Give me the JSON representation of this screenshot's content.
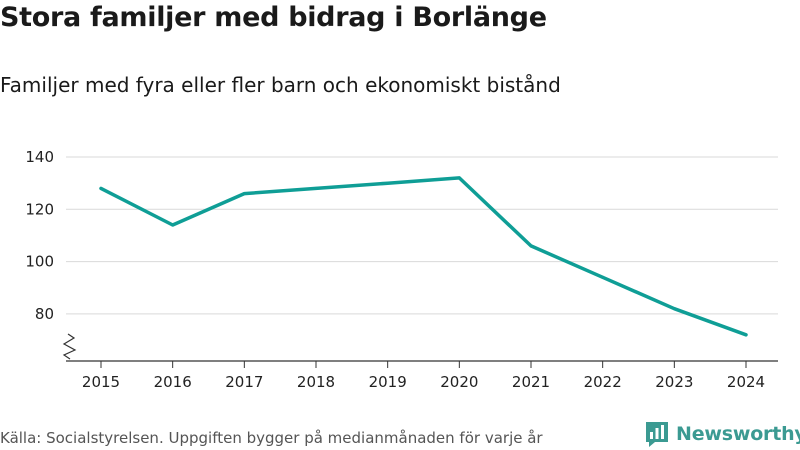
{
  "chart_data": {
    "type": "line",
    "title": "Stora familjer med bidrag i Borlänge",
    "subtitle": "Familjer med fyra eller fler barn och ekonomiskt bistånd",
    "xlabel": "",
    "ylabel": "",
    "categories": [
      "2015",
      "2016",
      "2017",
      "2018",
      "2019",
      "2020",
      "2021",
      "2022",
      "2023",
      "2024"
    ],
    "series": [
      {
        "name": "Familjer",
        "values": [
          128,
          114,
          126,
          128,
          130,
          132,
          106,
          94,
          82,
          72
        ]
      }
    ],
    "y_ticks": [
      "80",
      "100",
      "120",
      "140"
    ],
    "ylim": [
      62,
      140
    ],
    "grid": true,
    "axis_break": true,
    "line_color": "#0f9e96"
  },
  "footer": {
    "source": "Källa: Socialstyrelsen. Uppgiften bygger på medianmånaden för varje år",
    "brand": "Newsworthy",
    "brand_icon": "newsworthy-logo-icon",
    "brand_color": "#3b9a92"
  }
}
